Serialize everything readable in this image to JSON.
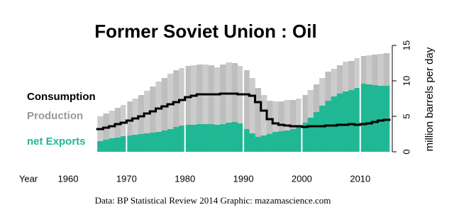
{
  "chart_data": {
    "type": "step-area",
    "title": "Former Soviet Union :  Oil",
    "x_label": "Year",
    "y_label": "million barrels per day",
    "caption": "Data: BP Statistical Review 2014    Graphic: mazamascience.com",
    "x": [
      1965,
      1966,
      1967,
      1968,
      1969,
      1970,
      1971,
      1972,
      1973,
      1974,
      1975,
      1976,
      1977,
      1978,
      1979,
      1980,
      1981,
      1982,
      1983,
      1984,
      1985,
      1986,
      1987,
      1988,
      1989,
      1990,
      1991,
      1992,
      1993,
      1994,
      1995,
      1996,
      1997,
      1998,
      1999,
      2000,
      2001,
      2002,
      2003,
      2004,
      2005,
      2006,
      2007,
      2008,
      2009,
      2010,
      2011,
      2012,
      2013,
      2014
    ],
    "series": [
      {
        "name": "Consumption",
        "color": "#000000",
        "kind": "line",
        "values": [
          3.2,
          3.4,
          3.6,
          3.9,
          4.1,
          4.4,
          4.7,
          5.0,
          5.4,
          5.7,
          6.1,
          6.4,
          6.7,
          7.0,
          7.3,
          7.7,
          7.9,
          8.1,
          8.1,
          8.1,
          8.1,
          8.2,
          8.2,
          8.2,
          8.1,
          8.1,
          7.9,
          7.0,
          5.8,
          4.6,
          4.0,
          3.8,
          3.7,
          3.6,
          3.6,
          3.5,
          3.6,
          3.6,
          3.6,
          3.7,
          3.7,
          3.8,
          3.8,
          3.9,
          3.8,
          3.9,
          4.0,
          4.2,
          4.4,
          4.5
        ]
      },
      {
        "name": "Production",
        "color": "#cccccc",
        "kind": "area",
        "values": [
          5.0,
          5.4,
          5.8,
          6.2,
          6.6,
          7.1,
          7.5,
          8.0,
          8.6,
          9.2,
          9.9,
          10.4,
          11.0,
          11.5,
          11.8,
          12.1,
          12.2,
          12.3,
          12.3,
          12.2,
          11.9,
          12.3,
          12.6,
          12.5,
          12.1,
          11.5,
          10.4,
          9.0,
          8.0,
          7.2,
          7.1,
          7.1,
          7.3,
          7.3,
          7.5,
          8.0,
          8.7,
          9.5,
          10.4,
          11.3,
          11.7,
          12.2,
          12.7,
          12.8,
          13.2,
          13.5,
          13.6,
          13.7,
          13.8,
          13.9
        ]
      },
      {
        "name": "net Exports",
        "color": "#20b894",
        "kind": "area",
        "values": [
          1.5,
          1.7,
          1.9,
          2.0,
          2.2,
          2.3,
          2.4,
          2.5,
          2.6,
          2.7,
          2.8,
          3.0,
          3.2,
          3.5,
          3.7,
          3.8,
          3.8,
          3.9,
          3.9,
          3.9,
          3.8,
          3.9,
          4.1,
          4.2,
          4.0,
          3.2,
          2.6,
          2.1,
          2.3,
          2.5,
          2.8,
          2.9,
          3.0,
          3.2,
          3.5,
          4.1,
          4.8,
          5.6,
          6.5,
          7.2,
          7.8,
          8.2,
          8.5,
          8.7,
          9.0,
          9.6,
          9.5,
          9.4,
          9.3,
          9.3
        ]
      }
    ],
    "xlim": [
      1960,
      2015
    ],
    "xticks": [
      1960,
      1970,
      1980,
      1990,
      2000,
      2010
    ],
    "ylim": [
      0,
      15
    ],
    "yticks": [
      0,
      5,
      10,
      15
    ],
    "grid": true
  }
}
